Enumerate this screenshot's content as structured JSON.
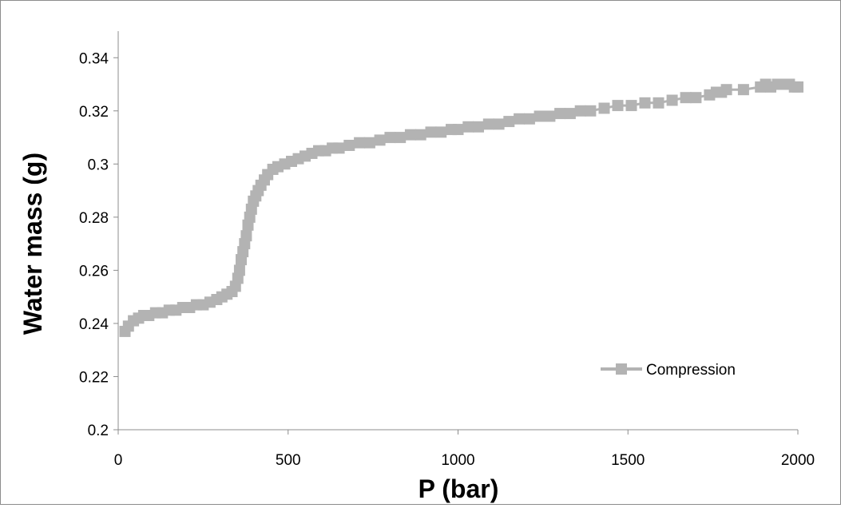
{
  "chart_data": {
    "type": "line",
    "xlabel": "P (bar)",
    "ylabel": "Water mass (g)",
    "xlim": [
      0,
      2000
    ],
    "ylim": [
      0.2,
      0.35
    ],
    "xticks": [
      "0",
      "500",
      "1000",
      "1500",
      "2000"
    ],
    "yticks": [
      "0.2",
      "0.22",
      "0.24",
      "0.26",
      "0.28",
      "0.3",
      "0.32",
      "0.34"
    ],
    "grid": false,
    "legend_position": "bottom-right",
    "series_color": "#b3b3b3",
    "series": [
      {
        "name": "Compression",
        "marker": "square",
        "x": [
          20,
          30,
          45,
          60,
          75,
          90,
          110,
          130,
          150,
          170,
          190,
          210,
          230,
          250,
          270,
          290,
          305,
          320,
          335,
          345,
          352,
          357,
          362,
          367,
          372,
          377,
          382,
          387,
          392,
          398,
          405,
          412,
          420,
          430,
          440,
          455,
          470,
          490,
          510,
          530,
          550,
          570,
          590,
          610,
          630,
          650,
          680,
          710,
          740,
          770,
          800,
          830,
          860,
          890,
          920,
          950,
          980,
          1000,
          1030,
          1060,
          1090,
          1120,
          1150,
          1180,
          1210,
          1240,
          1270,
          1300,
          1330,
          1360,
          1390,
          1430,
          1470,
          1510,
          1550,
          1590,
          1630,
          1670,
          1700,
          1740,
          1760,
          1775,
          1790,
          1840,
          1890,
          1905,
          1920,
          1940,
          1960,
          1975,
          1990,
          2000
        ],
        "y": [
          0.237,
          0.239,
          0.241,
          0.242,
          0.243,
          0.243,
          0.244,
          0.244,
          0.245,
          0.245,
          0.246,
          0.246,
          0.247,
          0.247,
          0.248,
          0.249,
          0.25,
          0.251,
          0.252,
          0.254,
          0.257,
          0.26,
          0.264,
          0.267,
          0.27,
          0.273,
          0.277,
          0.28,
          0.283,
          0.286,
          0.288,
          0.29,
          0.292,
          0.294,
          0.296,
          0.298,
          0.299,
          0.3,
          0.301,
          0.302,
          0.303,
          0.304,
          0.305,
          0.305,
          0.306,
          0.306,
          0.307,
          0.308,
          0.308,
          0.309,
          0.31,
          0.31,
          0.311,
          0.311,
          0.312,
          0.312,
          0.313,
          0.313,
          0.314,
          0.314,
          0.315,
          0.315,
          0.316,
          0.317,
          0.317,
          0.318,
          0.318,
          0.319,
          0.319,
          0.32,
          0.32,
          0.321,
          0.322,
          0.322,
          0.323,
          0.323,
          0.324,
          0.325,
          0.325,
          0.326,
          0.327,
          0.327,
          0.328,
          0.328,
          0.329,
          0.33,
          0.329,
          0.33,
          0.33,
          0.33,
          0.329,
          0.329
        ]
      }
    ]
  }
}
